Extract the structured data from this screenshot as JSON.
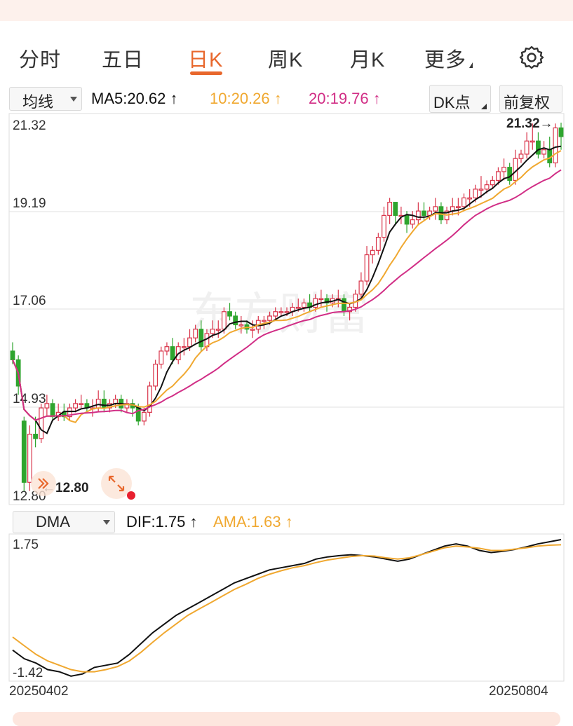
{
  "tabs": [
    {
      "label": "分时",
      "active": false
    },
    {
      "label": "五日",
      "active": false
    },
    {
      "label": "日K",
      "active": true
    },
    {
      "label": "周K",
      "active": false
    },
    {
      "label": "月K",
      "active": false
    },
    {
      "label": "更多",
      "active": false
    }
  ],
  "settings_icon": "gear-icon",
  "toolbar": {
    "ma_select": "均线",
    "ma5": "MA5:20.62",
    "ma10": "10:20.26",
    "ma20": "20:19.76",
    "dk_button": "DK点",
    "fq_button": "前复权"
  },
  "indicator": {
    "select": "DMA",
    "dif": "DIF:1.75",
    "ama": "AMA:1.63"
  },
  "colors": {
    "up": "#d9344a",
    "down": "#2ea52e",
    "ma5": "#111111",
    "ma10": "#f0a830",
    "ma20": "#d12e86",
    "accent": "#e8672c"
  },
  "price_axis": [
    "21.32",
    "19.19",
    "17.06",
    "14.93",
    "12.80"
  ],
  "dma_axis": [
    "1.75",
    "-1.42"
  ],
  "annotations": {
    "high": "21.32",
    "low": "12.80"
  },
  "dates": {
    "start": "20250402",
    "end": "20250804"
  },
  "watermark": "东方财富",
  "chart_data": {
    "type": "candlestick",
    "x_range": [
      "20250402",
      "20250804"
    ],
    "ylim": [
      12.8,
      21.32
    ],
    "ohlc_open": [
      16.1,
      15.9,
      14.5,
      13.1,
      14.2,
      14.1,
      14.8,
      14.9,
      14.6,
      14.7,
      14.6,
      14.8,
      14.9,
      14.9,
      14.8,
      14.8,
      15.0,
      14.8,
      14.9,
      15.0,
      14.8,
      14.9,
      14.8,
      14.5,
      14.7,
      15.3,
      15.8,
      16.1,
      16.2,
      15.9,
      16.2,
      16.2,
      16.4,
      16.6,
      16.2,
      16.5,
      16.6,
      16.6,
      17.0,
      16.9,
      16.7,
      16.7,
      16.6,
      16.6,
      16.8,
      16.8,
      16.9,
      17.0,
      17.0,
      17.0,
      17.1,
      17.1,
      17.2,
      17.1,
      17.3,
      17.3,
      17.2,
      17.3,
      17.3,
      17.0,
      17.1,
      17.4,
      17.7,
      18.3,
      18.4,
      18.7,
      19.2,
      19.5,
      19.2,
      19.2,
      19.0,
      19.1,
      19.3,
      19.2,
      19.3,
      19.4,
      19.1,
      19.3,
      19.4,
      19.4,
      19.6,
      19.6,
      19.8,
      19.8,
      19.9,
      20.0,
      20.2,
      20.3,
      20.0,
      20.5,
      20.6,
      20.9,
      20.9,
      20.6,
      20.7,
      20.4,
      21.2
    ],
    "ohlc_close": [
      15.9,
      15.3,
      13.1,
      14.2,
      14.1,
      14.8,
      14.9,
      14.6,
      14.7,
      14.6,
      14.8,
      14.9,
      14.9,
      14.8,
      14.8,
      15.0,
      14.8,
      14.9,
      15.0,
      14.8,
      14.9,
      14.8,
      14.5,
      14.7,
      15.3,
      15.8,
      16.1,
      16.2,
      15.9,
      16.2,
      16.2,
      16.4,
      16.6,
      16.2,
      16.5,
      16.6,
      16.6,
      17.0,
      16.9,
      16.7,
      16.7,
      16.6,
      16.6,
      16.8,
      16.8,
      16.9,
      17.0,
      17.0,
      17.0,
      17.1,
      17.1,
      17.2,
      17.1,
      17.3,
      17.3,
      17.2,
      17.3,
      17.3,
      17.0,
      17.1,
      17.4,
      17.7,
      18.3,
      18.4,
      18.7,
      19.2,
      19.5,
      19.2,
      19.2,
      19.0,
      19.1,
      19.3,
      19.2,
      19.3,
      19.4,
      19.1,
      19.3,
      19.4,
      19.4,
      19.6,
      19.6,
      19.8,
      19.8,
      19.9,
      20.0,
      20.2,
      20.3,
      20.0,
      20.5,
      20.6,
      20.9,
      20.9,
      20.6,
      20.7,
      20.4,
      21.2,
      21.0
    ],
    "ohlc_high": [
      16.3,
      16.0,
      14.6,
      14.4,
      14.6,
      14.9,
      15.1,
      15.0,
      14.9,
      14.9,
      14.9,
      15.0,
      15.1,
      15.0,
      15.0,
      15.2,
      15.2,
      15.0,
      15.1,
      15.1,
      15.0,
      15.0,
      14.9,
      14.8,
      15.4,
      15.9,
      16.2,
      16.3,
      16.4,
      16.3,
      16.4,
      16.6,
      16.7,
      16.8,
      16.6,
      16.8,
      16.8,
      17.1,
      17.2,
      17.0,
      16.9,
      16.8,
      16.8,
      16.9,
      16.9,
      17.0,
      17.1,
      17.1,
      17.1,
      17.2,
      17.3,
      17.3,
      17.4,
      17.4,
      17.5,
      17.4,
      17.4,
      17.5,
      17.4,
      17.2,
      17.5,
      17.9,
      18.5,
      18.5,
      18.8,
      19.4,
      19.6,
      19.5,
      19.4,
      19.3,
      19.3,
      19.5,
      19.5,
      19.4,
      19.6,
      19.5,
      19.4,
      19.6,
      19.6,
      19.7,
      19.8,
      19.9,
      20.1,
      20.0,
      20.1,
      20.3,
      20.5,
      20.4,
      20.7,
      20.7,
      21.1,
      21.3,
      21.1,
      20.9,
      21.0,
      21.3,
      21.32
    ],
    "ohlc_low": [
      15.8,
      15.1,
      12.9,
      12.9,
      13.9,
      14.0,
      14.6,
      14.5,
      14.5,
      14.5,
      14.5,
      14.7,
      14.8,
      14.7,
      14.6,
      14.7,
      14.7,
      14.7,
      14.8,
      14.7,
      14.7,
      14.6,
      14.4,
      14.4,
      14.6,
      15.2,
      15.7,
      16.0,
      15.8,
      15.8,
      16.0,
      16.1,
      16.3,
      16.1,
      16.1,
      16.4,
      16.4,
      16.5,
      16.8,
      16.6,
      16.5,
      16.5,
      16.4,
      16.5,
      16.6,
      16.7,
      16.8,
      16.9,
      16.9,
      16.9,
      17.0,
      17.0,
      17.0,
      17.0,
      17.1,
      17.0,
      17.1,
      17.1,
      16.9,
      16.8,
      17.0,
      17.3,
      17.6,
      18.1,
      18.3,
      18.6,
      19.0,
      19.0,
      19.0,
      18.8,
      18.9,
      19.0,
      19.1,
      19.1,
      19.1,
      19.0,
      19.0,
      19.2,
      19.2,
      19.3,
      19.4,
      19.5,
      19.6,
      19.7,
      19.8,
      19.9,
      20.0,
      19.9,
      19.9,
      20.4,
      20.5,
      20.7,
      20.5,
      20.5,
      20.3,
      20.3,
      20.7
    ],
    "dma_axis_range": [
      -1.42,
      1.75
    ],
    "series": [
      {
        "name": "DIF",
        "values": [
          -0.8,
          -1.0,
          -1.1,
          -1.25,
          -1.3,
          -1.4,
          -1.35,
          -1.2,
          -1.15,
          -1.1,
          -0.9,
          -0.65,
          -0.4,
          -0.2,
          0.0,
          0.15,
          0.3,
          0.45,
          0.6,
          0.75,
          0.85,
          0.95,
          1.05,
          1.1,
          1.15,
          1.2,
          1.3,
          1.35,
          1.38,
          1.4,
          1.38,
          1.35,
          1.3,
          1.25,
          1.3,
          1.4,
          1.5,
          1.6,
          1.65,
          1.6,
          1.5,
          1.45,
          1.48,
          1.52,
          1.58,
          1.65,
          1.7,
          1.75
        ]
      },
      {
        "name": "AMA",
        "values": [
          -0.5,
          -0.7,
          -0.9,
          -1.05,
          -1.15,
          -1.25,
          -1.3,
          -1.3,
          -1.25,
          -1.18,
          -1.05,
          -0.85,
          -0.62,
          -0.4,
          -0.2,
          0.0,
          0.15,
          0.3,
          0.45,
          0.6,
          0.72,
          0.85,
          0.95,
          1.03,
          1.1,
          1.15,
          1.22,
          1.28,
          1.32,
          1.36,
          1.38,
          1.37,
          1.33,
          1.3,
          1.33,
          1.4,
          1.48,
          1.56,
          1.6,
          1.58,
          1.55,
          1.5,
          1.5,
          1.53,
          1.56,
          1.6,
          1.62,
          1.63
        ]
      }
    ]
  }
}
